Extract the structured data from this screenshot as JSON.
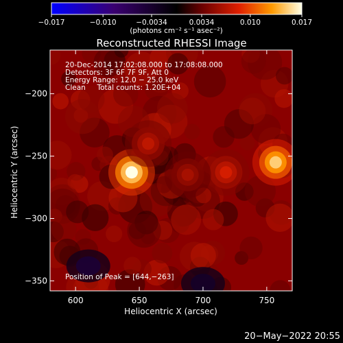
{
  "chart_data": {
    "type": "heatmap",
    "title": "Reconstructed RHESSI Image",
    "xlabel": "Heliocentric X (arcsec)",
    "ylabel": "Heliocentric Y (arcsec)",
    "xlim": [
      580,
      770
    ],
    "ylim": [
      -358,
      -165
    ],
    "x_ticks": [
      600,
      650,
      700,
      750
    ],
    "y_ticks": [
      -200,
      -250,
      -300,
      -350
    ],
    "x_tick_labels": [
      "600",
      "650",
      "700",
      "750"
    ],
    "y_tick_labels": [
      "−200",
      "−250",
      "−300",
      "−350"
    ],
    "colorbar": {
      "range": [
        -0.017,
        0.017
      ],
      "ticks": [
        -0.017,
        -0.01,
        -0.0034,
        0.0034,
        0.01,
        0.017
      ],
      "tick_labels": [
        "−0.017",
        "−0.010",
        "−0.0034",
        "0.0034",
        "0.010",
        "0.017"
      ],
      "unit_label": "(photons cm⁻² s⁻¹ asec⁻²)"
    },
    "info_lines": [
      "20-Dec-2014 17:02:08.000 to 17:08:08.000",
      "Detectors: 3F 6F 7F 9F, Att 0",
      "Energy Range: 12.0 − 25.0 keV",
      "Clean     Total counts: 1.20E+04"
    ],
    "peak_label": "Position of Peak = [644,−263]",
    "sources": [
      {
        "x": 644,
        "y": -263,
        "value": 0.017
      },
      {
        "x": 757,
        "y": -255,
        "value": 0.015
      },
      {
        "x": 718,
        "y": -263,
        "value": 0.008
      },
      {
        "x": 657,
        "y": -240,
        "value": 0.007
      },
      {
        "x": 688,
        "y": -265,
        "value": 0.006
      }
    ],
    "negative_regions": [
      {
        "x": 610,
        "y": -338,
        "value": -0.004
      },
      {
        "x": 700,
        "y": -352,
        "value": -0.003
      }
    ],
    "background_level": 0.004
  },
  "footer": {
    "date": "20−May−2022 20:55"
  },
  "colors": {
    "background": "#000000",
    "foreground": "#ffffff"
  }
}
